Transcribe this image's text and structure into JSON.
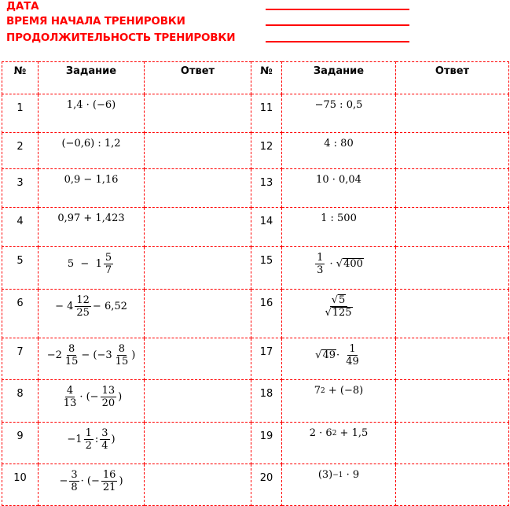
{
  "header": {
    "fields": [
      "ДАТА",
      "ВРЕМЯ НАЧАЛА ТРЕНИРОВКИ",
      "ПРОДОЛЖИТЕЛЬНОСТЬ ТРЕНИРОВКИ"
    ],
    "accent": "#ff0000"
  },
  "table": {
    "columns": [
      "№",
      "Задание",
      "Ответ",
      "№",
      "Задание",
      "Ответ"
    ],
    "rows": [
      {
        "left": {
          "n": "1",
          "e": [
            "1,4 · (−6)"
          ]
        },
        "right": {
          "n": "11",
          "e": [
            "−75 : 0,5"
          ]
        }
      },
      {
        "left": {
          "n": "2",
          "e": [
            "(−0,6) : 1,2"
          ]
        },
        "right": {
          "n": "12",
          "e": [
            "4 : 80"
          ]
        }
      },
      {
        "left": {
          "n": "3",
          "e": [
            "0,9 − 1,16"
          ]
        },
        "right": {
          "n": "13",
          "e": [
            "10 · 0,04"
          ]
        }
      },
      {
        "left": {
          "n": "4",
          "e": [
            "0,97 + 1,423"
          ]
        },
        "right": {
          "n": "14",
          "e": [
            "1 : 500"
          ]
        }
      },
      {
        "left": {
          "n": "5",
          "e": [
            "5  −  1",
            {
              "frac": [
                "5",
                "7"
              ]
            }
          ]
        },
        "right": {
          "n": "15",
          "e": [
            {
              "frac": [
                "1",
                "3"
              ]
            },
            " · ",
            {
              "sqrt": "400"
            }
          ]
        }
      },
      {
        "left": {
          "n": "6",
          "e": [
            "− 4",
            {
              "frac": [
                "12",
                "25"
              ]
            },
            "− 6,52"
          ]
        },
        "right": {
          "n": "16",
          "e": [
            {
              "frac": [
                {
                  "sqrt": "5"
                },
                {
                  "sqrt": "125"
                }
              ]
            }
          ]
        }
      },
      {
        "left": {
          "n": "7",
          "e": [
            "−2",
            {
              "frac": [
                "8",
                "15"
              ]
            },
            "− (−3",
            {
              "frac": [
                "8",
                "15"
              ]
            },
            ")"
          ]
        },
        "right": {
          "n": "17",
          "e": [
            {
              "sqrt": "49"
            },
            "· ",
            {
              "frac": [
                "1",
                "49"
              ]
            }
          ]
        }
      },
      {
        "left": {
          "n": "8",
          "e": [
            {
              "frac": [
                "4",
                "13"
              ]
            },
            "· (−",
            {
              "frac": [
                "13",
                "20"
              ]
            },
            ")"
          ]
        },
        "right": {
          "n": "18",
          "e": [
            "7",
            {
              "sup": "2"
            },
            " + (−8)"
          ]
        }
      },
      {
        "left": {
          "n": "9",
          "e": [
            "−1",
            {
              "frac": [
                "1",
                "2"
              ]
            },
            ":",
            {
              "frac": [
                "3",
                "4"
              ]
            },
            ")"
          ]
        },
        "right": {
          "n": "19",
          "e": [
            "2 · 6",
            {
              "sup": "2"
            },
            " + 1,5"
          ]
        }
      },
      {
        "left": {
          "n": "10",
          "e": [
            "−",
            {
              "frac": [
                "3",
                "8"
              ]
            },
            "· (−",
            {
              "frac": [
                "16",
                "21"
              ]
            },
            ")"
          ]
        },
        "right": {
          "n": "20",
          "e": [
            "(3)",
            {
              "sup": "−1"
            },
            " · 9"
          ]
        }
      }
    ]
  }
}
